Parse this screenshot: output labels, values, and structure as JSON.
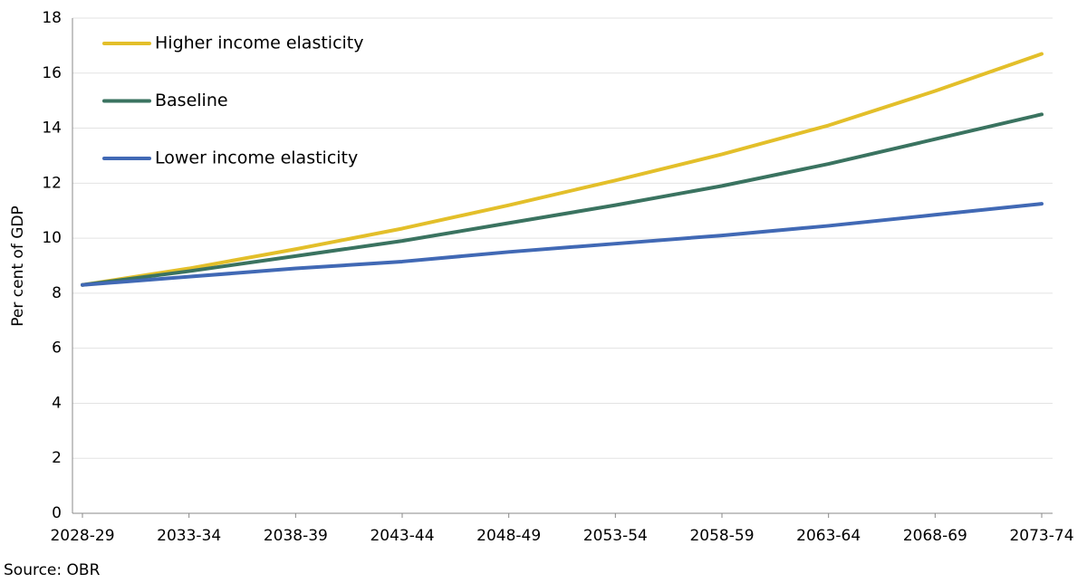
{
  "chart_data": {
    "type": "line",
    "y_label": "Per cent of GDP",
    "source": "Source: OBR",
    "categories": [
      "2028-29",
      "2033-34",
      "2038-39",
      "2043-44",
      "2048-49",
      "2053-54",
      "2058-59",
      "2063-64",
      "2068-69",
      "2073-74"
    ],
    "series": [
      {
        "name": "Higher income elasticity",
        "color": "#e3bf2a",
        "values": [
          8.3,
          8.9,
          9.6,
          10.35,
          11.2,
          12.1,
          13.05,
          14.1,
          15.35,
          16.7
        ]
      },
      {
        "name": "Baseline",
        "color": "#3a7360",
        "values": [
          8.3,
          8.8,
          9.35,
          9.9,
          10.55,
          11.2,
          11.9,
          12.7,
          13.6,
          14.5
        ]
      },
      {
        "name": "Lower income elasticity",
        "color": "#4169b5",
        "values": [
          8.3,
          8.6,
          8.9,
          9.15,
          9.5,
          9.8,
          10.1,
          10.45,
          10.85,
          11.25
        ]
      }
    ],
    "ylim": [
      0,
      18
    ],
    "yticks": [
      0,
      2,
      4,
      6,
      8,
      10,
      12,
      14,
      16,
      18
    ],
    "grid": true,
    "legend": "upper left"
  }
}
